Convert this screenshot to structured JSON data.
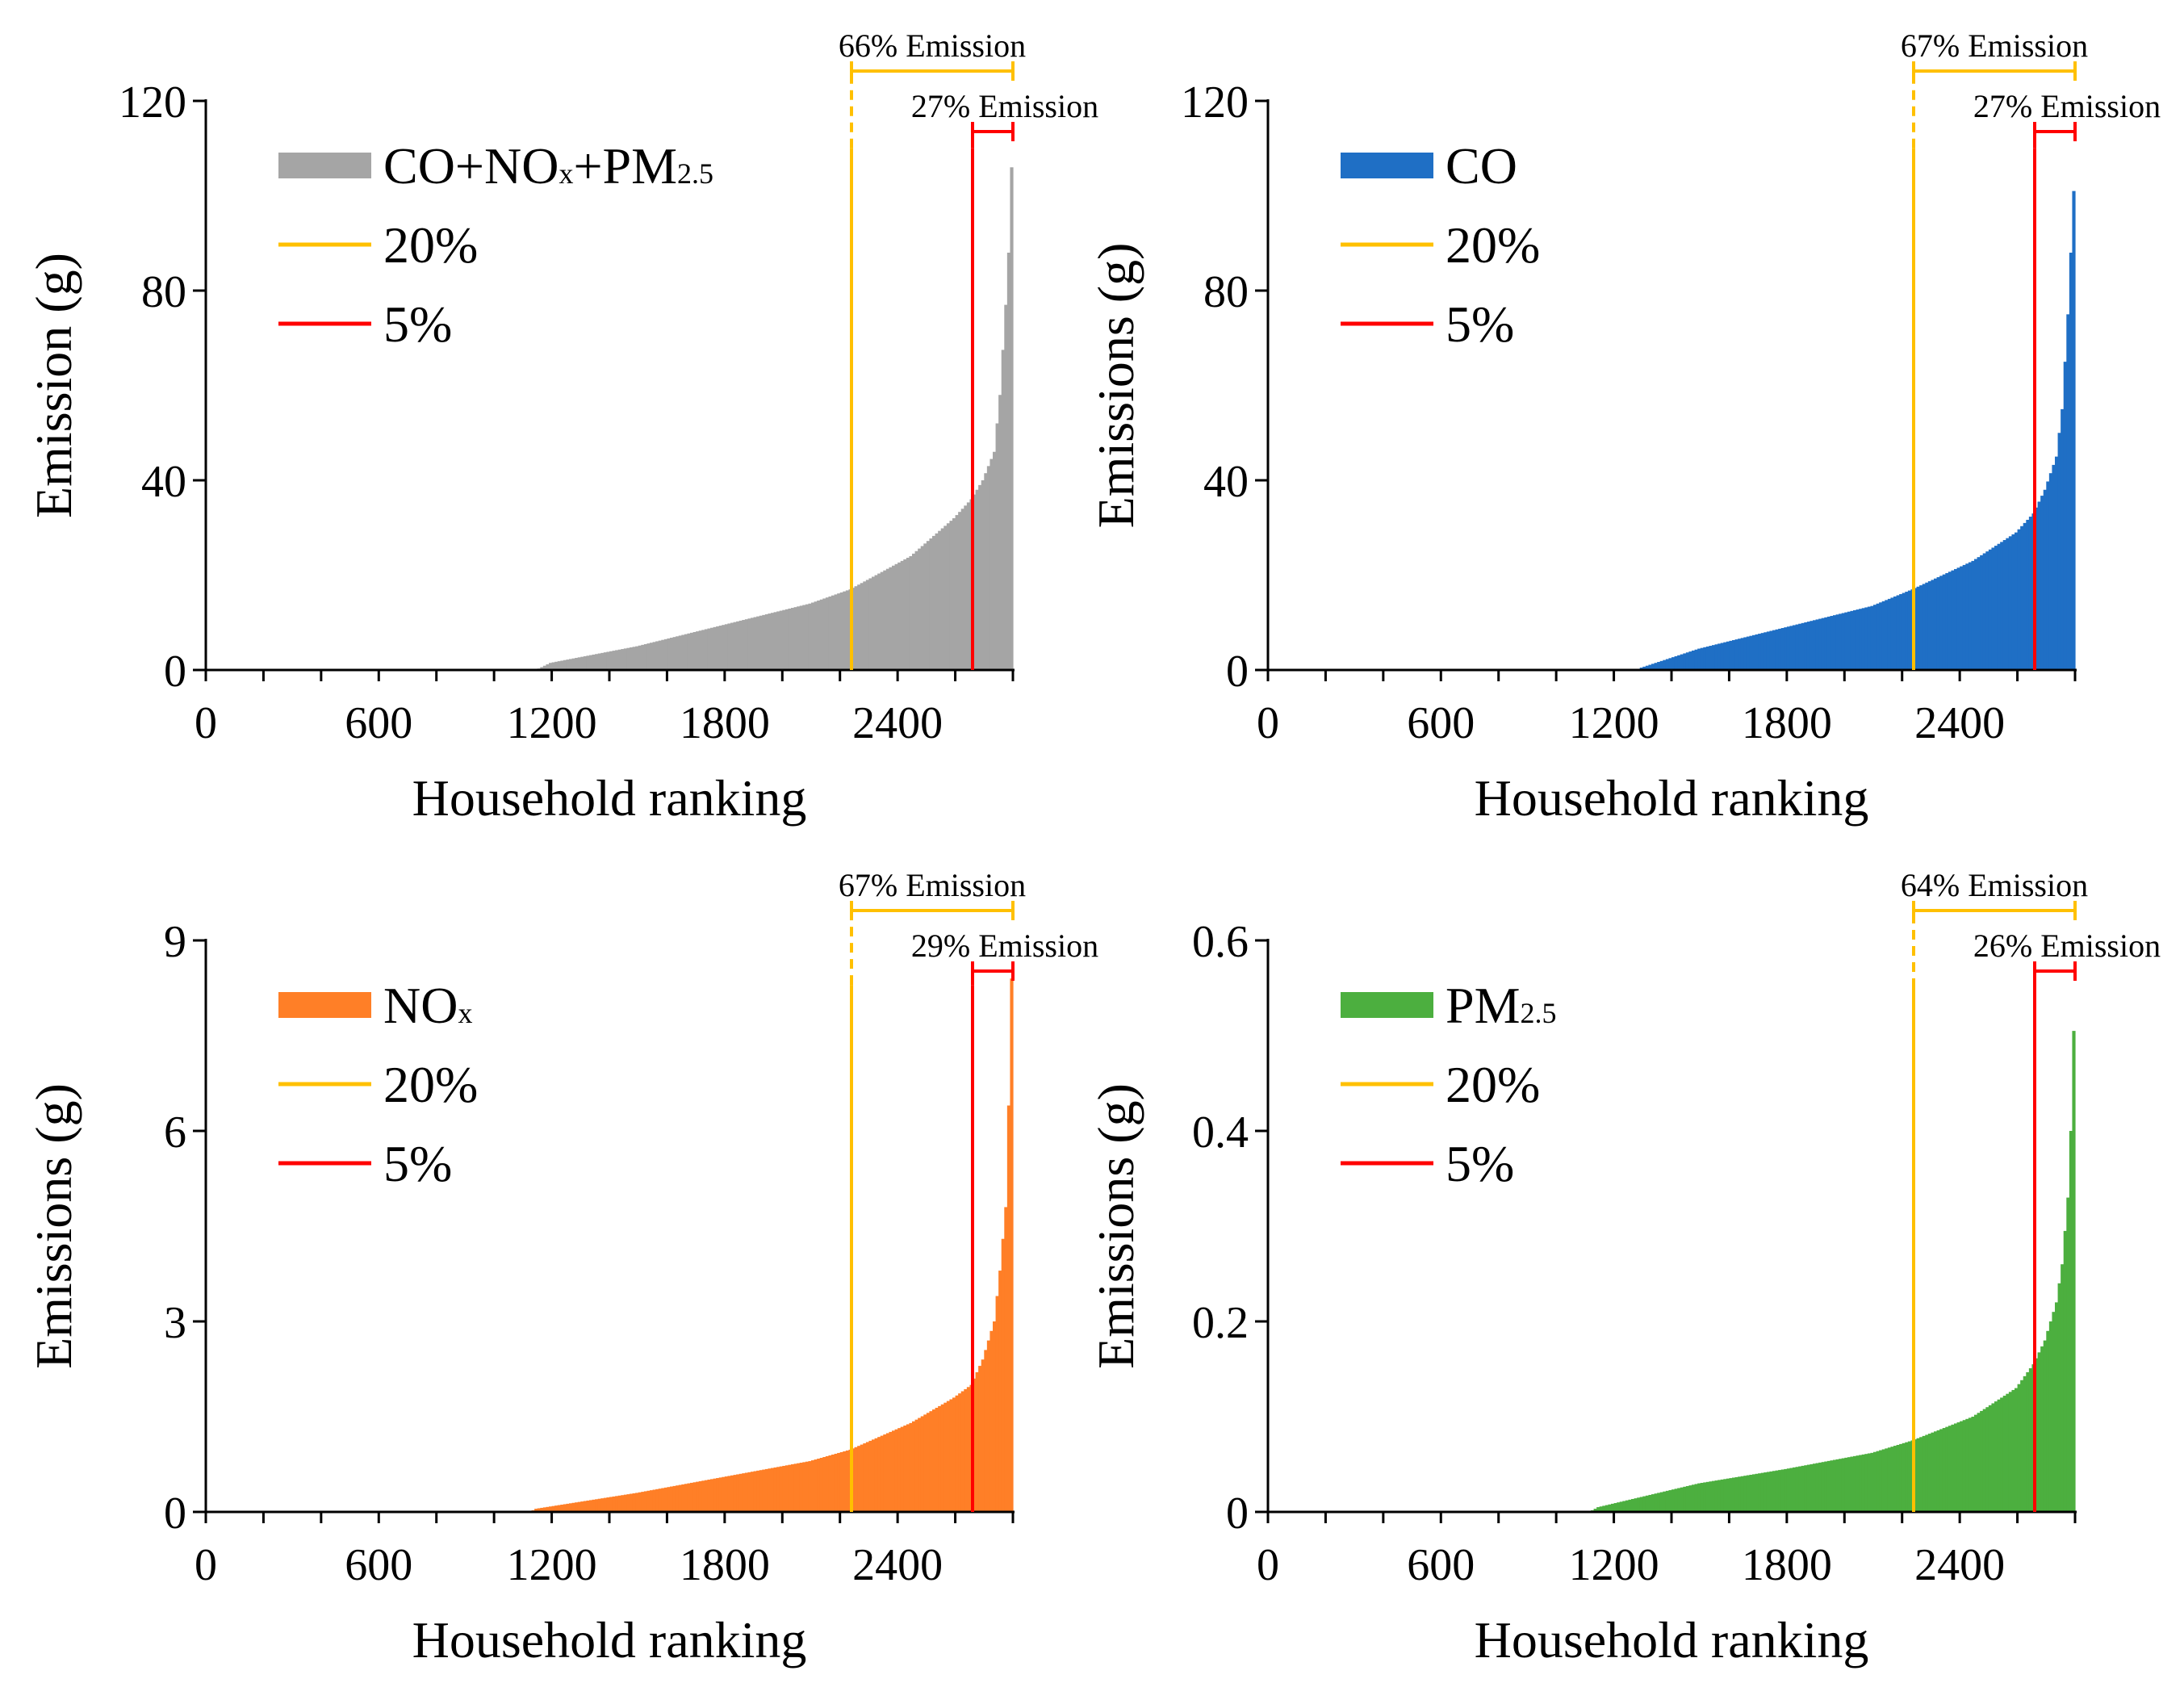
{
  "figure_title": "",
  "chart_data": [
    {
      "type": "bar",
      "title": "",
      "xlabel": "Household ranking",
      "ylabel": "Emission (g)",
      "xlim": [
        0,
        2800
      ],
      "ylim": [
        0,
        120
      ],
      "xticks": [
        "0",
        "600",
        "1200",
        "1800",
        "2400"
      ],
      "yticks": [
        "0",
        "40",
        "80",
        "120"
      ],
      "series_color": "#A5A5A5",
      "series": {
        "name": {
          "main": "CO+NO",
          "sub1": "x",
          "mid": "+PM",
          "sub2": "2.5"
        },
        "n_households": 2800,
        "ranks": [
          0,
          1150,
          1200,
          1500,
          1800,
          2100,
          2240,
          2450,
          2600,
          2660,
          2700,
          2740,
          2760,
          2780,
          2790,
          2800
        ],
        "values": [
          0,
          0,
          1.5,
          5,
          9.5,
          14,
          17,
          24,
          32,
          36,
          40,
          46,
          58,
          77,
          88,
          106
        ]
      },
      "legend": [
        {
          "label": "CO+NOx+PM2.5",
          "kind": "patch"
        },
        {
          "label": "20%",
          "kind": "line",
          "color": "#FFC000"
        },
        {
          "label": "5%",
          "kind": "line",
          "color": "#FF0000"
        }
      ],
      "markers": [
        {
          "name": "top-20%",
          "x": 2240,
          "y_top": 110,
          "color": "#FFC000",
          "label": "66% Emission"
        },
        {
          "name": "top-5%",
          "x": 2660,
          "y_top": 110,
          "color": "#FF0000",
          "label": "27% Emission"
        }
      ]
    },
    {
      "type": "bar",
      "title": "",
      "xlabel": "Household ranking",
      "ylabel": "Emissions (g)",
      "xlim": [
        0,
        2800
      ],
      "ylim": [
        0,
        120
      ],
      "xticks": [
        "0",
        "600",
        "1200",
        "1800",
        "2400"
      ],
      "yticks": [
        "0",
        "40",
        "80",
        "120"
      ],
      "series_color": "#1F6FC5",
      "series": {
        "name": {
          "main": "CO",
          "sub1": "",
          "mid": "",
          "sub2": ""
        },
        "n_households": 2800,
        "ranks": [
          0,
          1280,
          1300,
          1500,
          1800,
          2100,
          2240,
          2450,
          2600,
          2660,
          2700,
          2740,
          2760,
          2780,
          2790,
          2800
        ],
        "values": [
          0,
          0,
          0.5,
          4.5,
          9,
          13.5,
          17,
          23,
          29,
          33,
          38,
          45,
          55,
          75,
          88,
          101
        ]
      },
      "legend": [
        {
          "label": "CO",
          "kind": "patch"
        },
        {
          "label": "20%",
          "kind": "line",
          "color": "#FFC000"
        },
        {
          "label": "5%",
          "kind": "line",
          "color": "#FF0000"
        }
      ],
      "markers": [
        {
          "name": "top-20%",
          "x": 2240,
          "y_top": 110,
          "color": "#FFC000",
          "label": "67% Emission"
        },
        {
          "name": "top-5%",
          "x": 2660,
          "y_top": 110,
          "color": "#FF0000",
          "label": "27% Emission"
        }
      ]
    },
    {
      "type": "bar",
      "title": "",
      "xlabel": "Household ranking",
      "ylabel": "Emissions (g)",
      "xlim": [
        0,
        2800
      ],
      "ylim": [
        0,
        9
      ],
      "xticks": [
        "0",
        "600",
        "1200",
        "1800",
        "2400"
      ],
      "yticks": [
        "0",
        "3",
        "6",
        "9"
      ],
      "series_color": "#FF7F27",
      "series": {
        "name": {
          "main": "NO",
          "sub1": "x",
          "mid": "",
          "sub2": ""
        },
        "n_households": 2800,
        "ranks": [
          0,
          1130,
          1150,
          1500,
          1800,
          2100,
          2240,
          2450,
          2600,
          2660,
          2700,
          2740,
          2760,
          2780,
          2790,
          2800
        ],
        "values": [
          0,
          0,
          0.05,
          0.3,
          0.55,
          0.8,
          0.98,
          1.4,
          1.8,
          2.0,
          2.4,
          3.0,
          3.8,
          4.8,
          6.4,
          8.4
        ]
      },
      "legend": [
        {
          "label": "NOx",
          "kind": "patch"
        },
        {
          "label": "20%",
          "kind": "line",
          "color": "#FFC000"
        },
        {
          "label": "5%",
          "kind": "line",
          "color": "#FF0000"
        }
      ],
      "markers": [
        {
          "name": "top-20%",
          "x": 2240,
          "y_top": 8.3,
          "color": "#FFC000",
          "label": "67% Emission"
        },
        {
          "name": "top-5%",
          "x": 2660,
          "y_top": 8.3,
          "color": "#FF0000",
          "label": "29% Emission"
        }
      ]
    },
    {
      "type": "bar",
      "title": "",
      "xlabel": "Household ranking",
      "ylabel": "Emissions (g)",
      "xlim": [
        0,
        2800
      ],
      "ylim": [
        0,
        0.6
      ],
      "xticks": [
        "0",
        "600",
        "1200",
        "1800",
        "2400"
      ],
      "yticks": [
        "0",
        "0.2",
        "0.4",
        "0.6"
      ],
      "series_color": "#4CAF3F",
      "series": {
        "name": {
          "main": "PM",
          "sub1": "",
          "mid": "",
          "sub2": "2.5"
        },
        "n_households": 2800,
        "ranks": [
          0,
          1120,
          1150,
          1500,
          1800,
          2100,
          2240,
          2450,
          2600,
          2660,
          2700,
          2740,
          2760,
          2780,
          2790,
          2800
        ],
        "values": [
          0,
          0,
          0.005,
          0.03,
          0.045,
          0.062,
          0.075,
          0.1,
          0.13,
          0.155,
          0.18,
          0.22,
          0.26,
          0.33,
          0.4,
          0.505
        ]
      },
      "legend": [
        {
          "label": "PM2.5",
          "kind": "patch"
        },
        {
          "label": "20%",
          "kind": "line",
          "color": "#FFC000"
        },
        {
          "label": "5%",
          "kind": "line",
          "color": "#FF0000"
        }
      ],
      "markers": [
        {
          "name": "top-20%",
          "x": 2240,
          "y_top": 0.55,
          "color": "#FFC000",
          "label": "64% Emission"
        },
        {
          "name": "top-5%",
          "x": 2660,
          "y_top": 0.55,
          "color": "#FF0000",
          "label": "26% Emission"
        }
      ]
    }
  ]
}
